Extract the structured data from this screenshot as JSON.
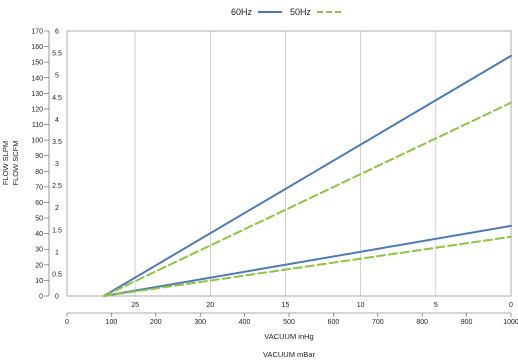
{
  "chart_data": {
    "type": "line",
    "title": "",
    "legend": {
      "placement": "top-center",
      "entries": [
        {
          "label": "60Hz",
          "style": "solid",
          "color": "#4a7ab8"
        },
        {
          "label": "50Hz",
          "style": "dashed",
          "color": "#8dc53e"
        }
      ]
    },
    "axes": {
      "x_inhg": {
        "label": "VACUUM inHg",
        "ticks": [
          "25",
          "20",
          "15",
          "10",
          "5",
          "0"
        ]
      },
      "x_mbar": {
        "label": "VACUUM mBar",
        "ticks": [
          "0",
          "100",
          "200",
          "300",
          "400",
          "500",
          "600",
          "700",
          "800",
          "900",
          "1000"
        ],
        "range": [
          0,
          1000
        ]
      },
      "y_slpm": {
        "label": "FLOW SLPM",
        "range": [
          0,
          170
        ],
        "ticks": [
          "0",
          "10",
          "20",
          "30",
          "40",
          "50",
          "60",
          "70",
          "80",
          "90",
          "100",
          "110",
          "120",
          "130",
          "140",
          "150",
          "160",
          "170"
        ]
      },
      "y_scfm": {
        "label": "FLOW SCFM",
        "range": [
          0,
          6
        ],
        "ticks": [
          "0",
          "0.5",
          "1",
          "1.5",
          "2",
          "2.5",
          "3",
          "3.5",
          "4",
          "4.5",
          "5",
          "5.5",
          "6"
        ]
      }
    },
    "grid": "vertical",
    "x_unit": "mBar",
    "y_unit": "SLPM",
    "series": [
      {
        "name": "60Hz",
        "curve": "upper",
        "style": "solid",
        "color": "#4a7ab8",
        "x": [
          83,
          1000
        ],
        "y": [
          0,
          154
        ]
      },
      {
        "name": "50Hz",
        "curve": "upper",
        "style": "dashed",
        "color": "#8dc53e",
        "x": [
          83,
          1000
        ],
        "y": [
          0,
          124
        ]
      },
      {
        "name": "60Hz",
        "curve": "lower",
        "style": "solid",
        "color": "#4a7ab8",
        "x": [
          83,
          1000
        ],
        "y": [
          0,
          45
        ]
      },
      {
        "name": "50Hz",
        "curve": "lower",
        "style": "dashed",
        "color": "#8dc53e",
        "x": [
          83,
          1000
        ],
        "y": [
          0,
          38
        ]
      }
    ]
  }
}
